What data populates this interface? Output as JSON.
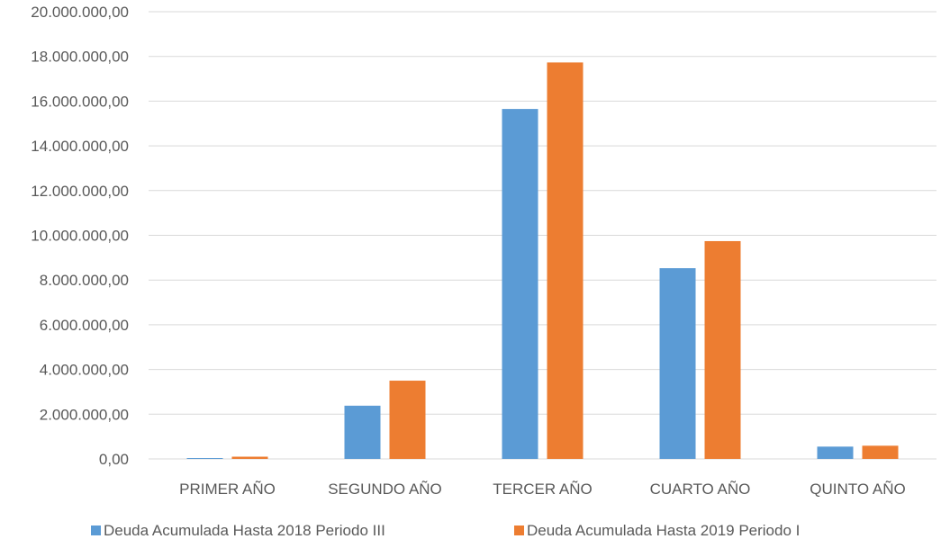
{
  "chart_data": {
    "type": "bar",
    "categories": [
      "PRIMER AÑO",
      "SEGUNDO AÑO",
      "TERCER AÑO",
      "CUARTO AÑO",
      "QUINTO AÑO"
    ],
    "series": [
      {
        "name": "Deuda Acumulada Hasta 2018 Periodo III",
        "color": "#5b9bd5",
        "values": [
          40000,
          2380000,
          15650000,
          8530000,
          550000
        ]
      },
      {
        "name": "Deuda Acumulada Hasta 2019 Periodo I",
        "color": "#ed7d31",
        "values": [
          100000,
          3500000,
          17730000,
          9740000,
          590000
        ]
      }
    ],
    "ylim": [
      0,
      20000000
    ],
    "yticks": [
      "0,00",
      "2.000.000,00",
      "4.000.000,00",
      "6.000.000,00",
      "8.000.000,00",
      "10.000.000,00",
      "12.000.000,00",
      "14.000.000,00",
      "16.000.000,00",
      "18.000.000,00",
      "20.000.000,00"
    ],
    "grid": true,
    "legend_position": "bottom",
    "title": "",
    "xlabel": "",
    "ylabel": ""
  }
}
